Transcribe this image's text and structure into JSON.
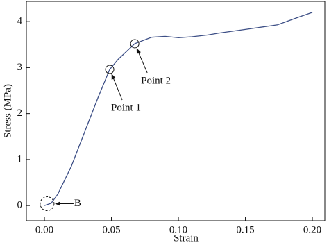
{
  "chart_data": {
    "type": "line",
    "x_label": "Strain",
    "y_label": "Stress (MPa)",
    "x": [
      0,
      0.005,
      0.01,
      0.02,
      0.03,
      0.04,
      0.0487,
      0.055,
      0.0674,
      0.08,
      0.09,
      0.1,
      0.11,
      0.122,
      0.13,
      0.15,
      0.174,
      0.19,
      0.2
    ],
    "series": [
      {
        "color": "#3d4f86",
        "values": [
          0,
          0.05,
          0.25,
          0.85,
          1.6,
          2.35,
          2.96,
          3.18,
          3.52,
          3.66,
          3.68,
          3.65,
          3.67,
          3.71,
          3.75,
          3.83,
          3.93,
          4.1,
          4.2
        ]
      }
    ],
    "xlim": [
      -0.0135,
      0.2093
    ],
    "ylim": [
      -0.33,
      4.44
    ],
    "xticks": [
      {
        "value": 0,
        "label": "0.00"
      },
      {
        "value": 0.05,
        "label": "0.05"
      },
      {
        "value": 0.1,
        "label": "0.10"
      },
      {
        "value": 0.15,
        "label": "0.15"
      },
      {
        "value": 0.2,
        "label": "0.20"
      }
    ],
    "yticks": [
      0,
      1,
      2,
      3,
      4
    ],
    "annotations": [
      {
        "text": "B",
        "x": 0.002,
        "y": 0.04
      },
      {
        "text": "Point 1",
        "x": 0.0487,
        "y": 2.96
      },
      {
        "text": "Point 2",
        "x": 0.0674,
        "y": 3.52
      }
    ]
  }
}
